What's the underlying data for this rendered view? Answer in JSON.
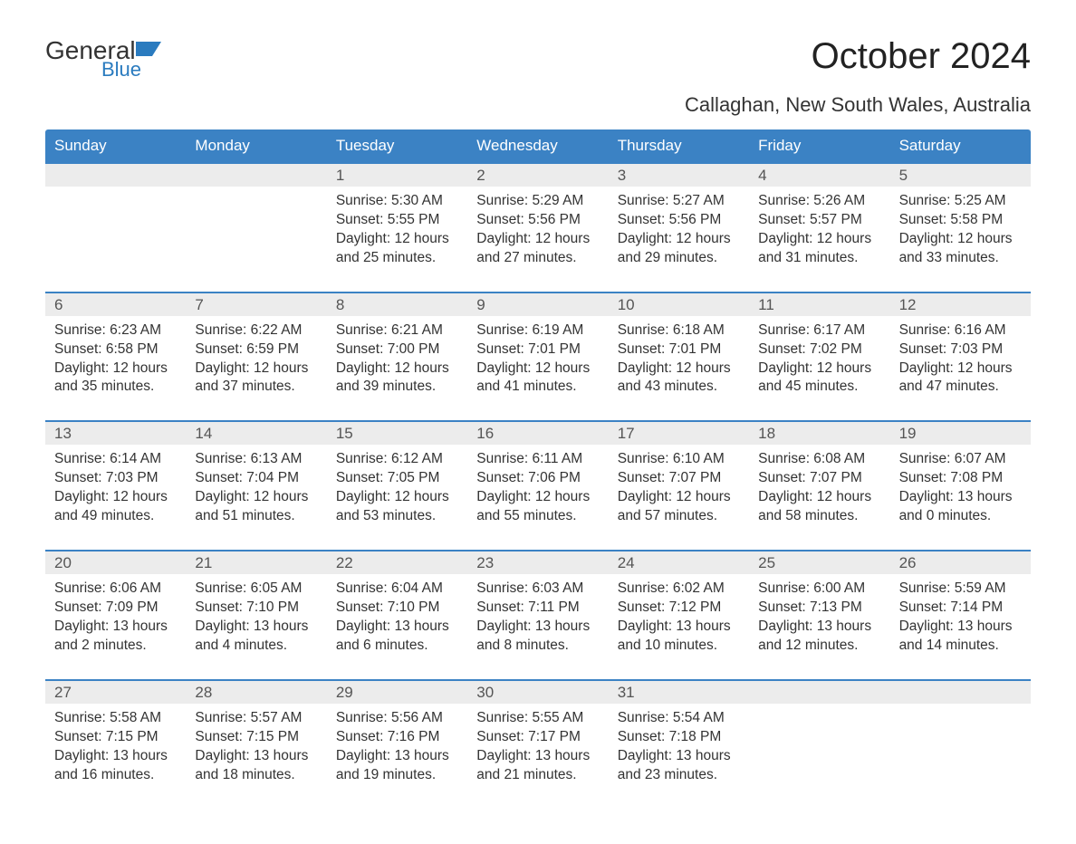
{
  "logo": {
    "main": "General",
    "sub": "Blue"
  },
  "title": "October 2024",
  "location": "Callaghan, New South Wales, Australia",
  "style": {
    "header_bg": "#3b82c4",
    "header_text": "#ffffff",
    "daynum_bg": "#ececec",
    "border_color": "#3b82c4",
    "body_text": "#333333",
    "title_fontsize": 40,
    "location_fontsize": 22,
    "dayhead_fontsize": 17,
    "cell_fontsize": 15.5
  },
  "columns": [
    "Sunday",
    "Monday",
    "Tuesday",
    "Wednesday",
    "Thursday",
    "Friday",
    "Saturday"
  ],
  "weeks": [
    {
      "nums": [
        "",
        "",
        "1",
        "2",
        "3",
        "4",
        "5"
      ],
      "cells": [
        {},
        {},
        {
          "sunrise": "Sunrise: 5:30 AM",
          "sunset": "Sunset: 5:55 PM",
          "day1": "Daylight: 12 hours",
          "day2": "and 25 minutes."
        },
        {
          "sunrise": "Sunrise: 5:29 AM",
          "sunset": "Sunset: 5:56 PM",
          "day1": "Daylight: 12 hours",
          "day2": "and 27 minutes."
        },
        {
          "sunrise": "Sunrise: 5:27 AM",
          "sunset": "Sunset: 5:56 PM",
          "day1": "Daylight: 12 hours",
          "day2": "and 29 minutes."
        },
        {
          "sunrise": "Sunrise: 5:26 AM",
          "sunset": "Sunset: 5:57 PM",
          "day1": "Daylight: 12 hours",
          "day2": "and 31 minutes."
        },
        {
          "sunrise": "Sunrise: 5:25 AM",
          "sunset": "Sunset: 5:58 PM",
          "day1": "Daylight: 12 hours",
          "day2": "and 33 minutes."
        }
      ]
    },
    {
      "nums": [
        "6",
        "7",
        "8",
        "9",
        "10",
        "11",
        "12"
      ],
      "cells": [
        {
          "sunrise": "Sunrise: 6:23 AM",
          "sunset": "Sunset: 6:58 PM",
          "day1": "Daylight: 12 hours",
          "day2": "and 35 minutes."
        },
        {
          "sunrise": "Sunrise: 6:22 AM",
          "sunset": "Sunset: 6:59 PM",
          "day1": "Daylight: 12 hours",
          "day2": "and 37 minutes."
        },
        {
          "sunrise": "Sunrise: 6:21 AM",
          "sunset": "Sunset: 7:00 PM",
          "day1": "Daylight: 12 hours",
          "day2": "and 39 minutes."
        },
        {
          "sunrise": "Sunrise: 6:19 AM",
          "sunset": "Sunset: 7:01 PM",
          "day1": "Daylight: 12 hours",
          "day2": "and 41 minutes."
        },
        {
          "sunrise": "Sunrise: 6:18 AM",
          "sunset": "Sunset: 7:01 PM",
          "day1": "Daylight: 12 hours",
          "day2": "and 43 minutes."
        },
        {
          "sunrise": "Sunrise: 6:17 AM",
          "sunset": "Sunset: 7:02 PM",
          "day1": "Daylight: 12 hours",
          "day2": "and 45 minutes."
        },
        {
          "sunrise": "Sunrise: 6:16 AM",
          "sunset": "Sunset: 7:03 PM",
          "day1": "Daylight: 12 hours",
          "day2": "and 47 minutes."
        }
      ]
    },
    {
      "nums": [
        "13",
        "14",
        "15",
        "16",
        "17",
        "18",
        "19"
      ],
      "cells": [
        {
          "sunrise": "Sunrise: 6:14 AM",
          "sunset": "Sunset: 7:03 PM",
          "day1": "Daylight: 12 hours",
          "day2": "and 49 minutes."
        },
        {
          "sunrise": "Sunrise: 6:13 AM",
          "sunset": "Sunset: 7:04 PM",
          "day1": "Daylight: 12 hours",
          "day2": "and 51 minutes."
        },
        {
          "sunrise": "Sunrise: 6:12 AM",
          "sunset": "Sunset: 7:05 PM",
          "day1": "Daylight: 12 hours",
          "day2": "and 53 minutes."
        },
        {
          "sunrise": "Sunrise: 6:11 AM",
          "sunset": "Sunset: 7:06 PM",
          "day1": "Daylight: 12 hours",
          "day2": "and 55 minutes."
        },
        {
          "sunrise": "Sunrise: 6:10 AM",
          "sunset": "Sunset: 7:07 PM",
          "day1": "Daylight: 12 hours",
          "day2": "and 57 minutes."
        },
        {
          "sunrise": "Sunrise: 6:08 AM",
          "sunset": "Sunset: 7:07 PM",
          "day1": "Daylight: 12 hours",
          "day2": "and 58 minutes."
        },
        {
          "sunrise": "Sunrise: 6:07 AM",
          "sunset": "Sunset: 7:08 PM",
          "day1": "Daylight: 13 hours",
          "day2": "and 0 minutes."
        }
      ]
    },
    {
      "nums": [
        "20",
        "21",
        "22",
        "23",
        "24",
        "25",
        "26"
      ],
      "cells": [
        {
          "sunrise": "Sunrise: 6:06 AM",
          "sunset": "Sunset: 7:09 PM",
          "day1": "Daylight: 13 hours",
          "day2": "and 2 minutes."
        },
        {
          "sunrise": "Sunrise: 6:05 AM",
          "sunset": "Sunset: 7:10 PM",
          "day1": "Daylight: 13 hours",
          "day2": "and 4 minutes."
        },
        {
          "sunrise": "Sunrise: 6:04 AM",
          "sunset": "Sunset: 7:10 PM",
          "day1": "Daylight: 13 hours",
          "day2": "and 6 minutes."
        },
        {
          "sunrise": "Sunrise: 6:03 AM",
          "sunset": "Sunset: 7:11 PM",
          "day1": "Daylight: 13 hours",
          "day2": "and 8 minutes."
        },
        {
          "sunrise": "Sunrise: 6:02 AM",
          "sunset": "Sunset: 7:12 PM",
          "day1": "Daylight: 13 hours",
          "day2": "and 10 minutes."
        },
        {
          "sunrise": "Sunrise: 6:00 AM",
          "sunset": "Sunset: 7:13 PM",
          "day1": "Daylight: 13 hours",
          "day2": "and 12 minutes."
        },
        {
          "sunrise": "Sunrise: 5:59 AM",
          "sunset": "Sunset: 7:14 PM",
          "day1": "Daylight: 13 hours",
          "day2": "and 14 minutes."
        }
      ]
    },
    {
      "nums": [
        "27",
        "28",
        "29",
        "30",
        "31",
        "",
        ""
      ],
      "cells": [
        {
          "sunrise": "Sunrise: 5:58 AM",
          "sunset": "Sunset: 7:15 PM",
          "day1": "Daylight: 13 hours",
          "day2": "and 16 minutes."
        },
        {
          "sunrise": "Sunrise: 5:57 AM",
          "sunset": "Sunset: 7:15 PM",
          "day1": "Daylight: 13 hours",
          "day2": "and 18 minutes."
        },
        {
          "sunrise": "Sunrise: 5:56 AM",
          "sunset": "Sunset: 7:16 PM",
          "day1": "Daylight: 13 hours",
          "day2": "and 19 minutes."
        },
        {
          "sunrise": "Sunrise: 5:55 AM",
          "sunset": "Sunset: 7:17 PM",
          "day1": "Daylight: 13 hours",
          "day2": "and 21 minutes."
        },
        {
          "sunrise": "Sunrise: 5:54 AM",
          "sunset": "Sunset: 7:18 PM",
          "day1": "Daylight: 13 hours",
          "day2": "and 23 minutes."
        },
        {},
        {}
      ]
    }
  ]
}
